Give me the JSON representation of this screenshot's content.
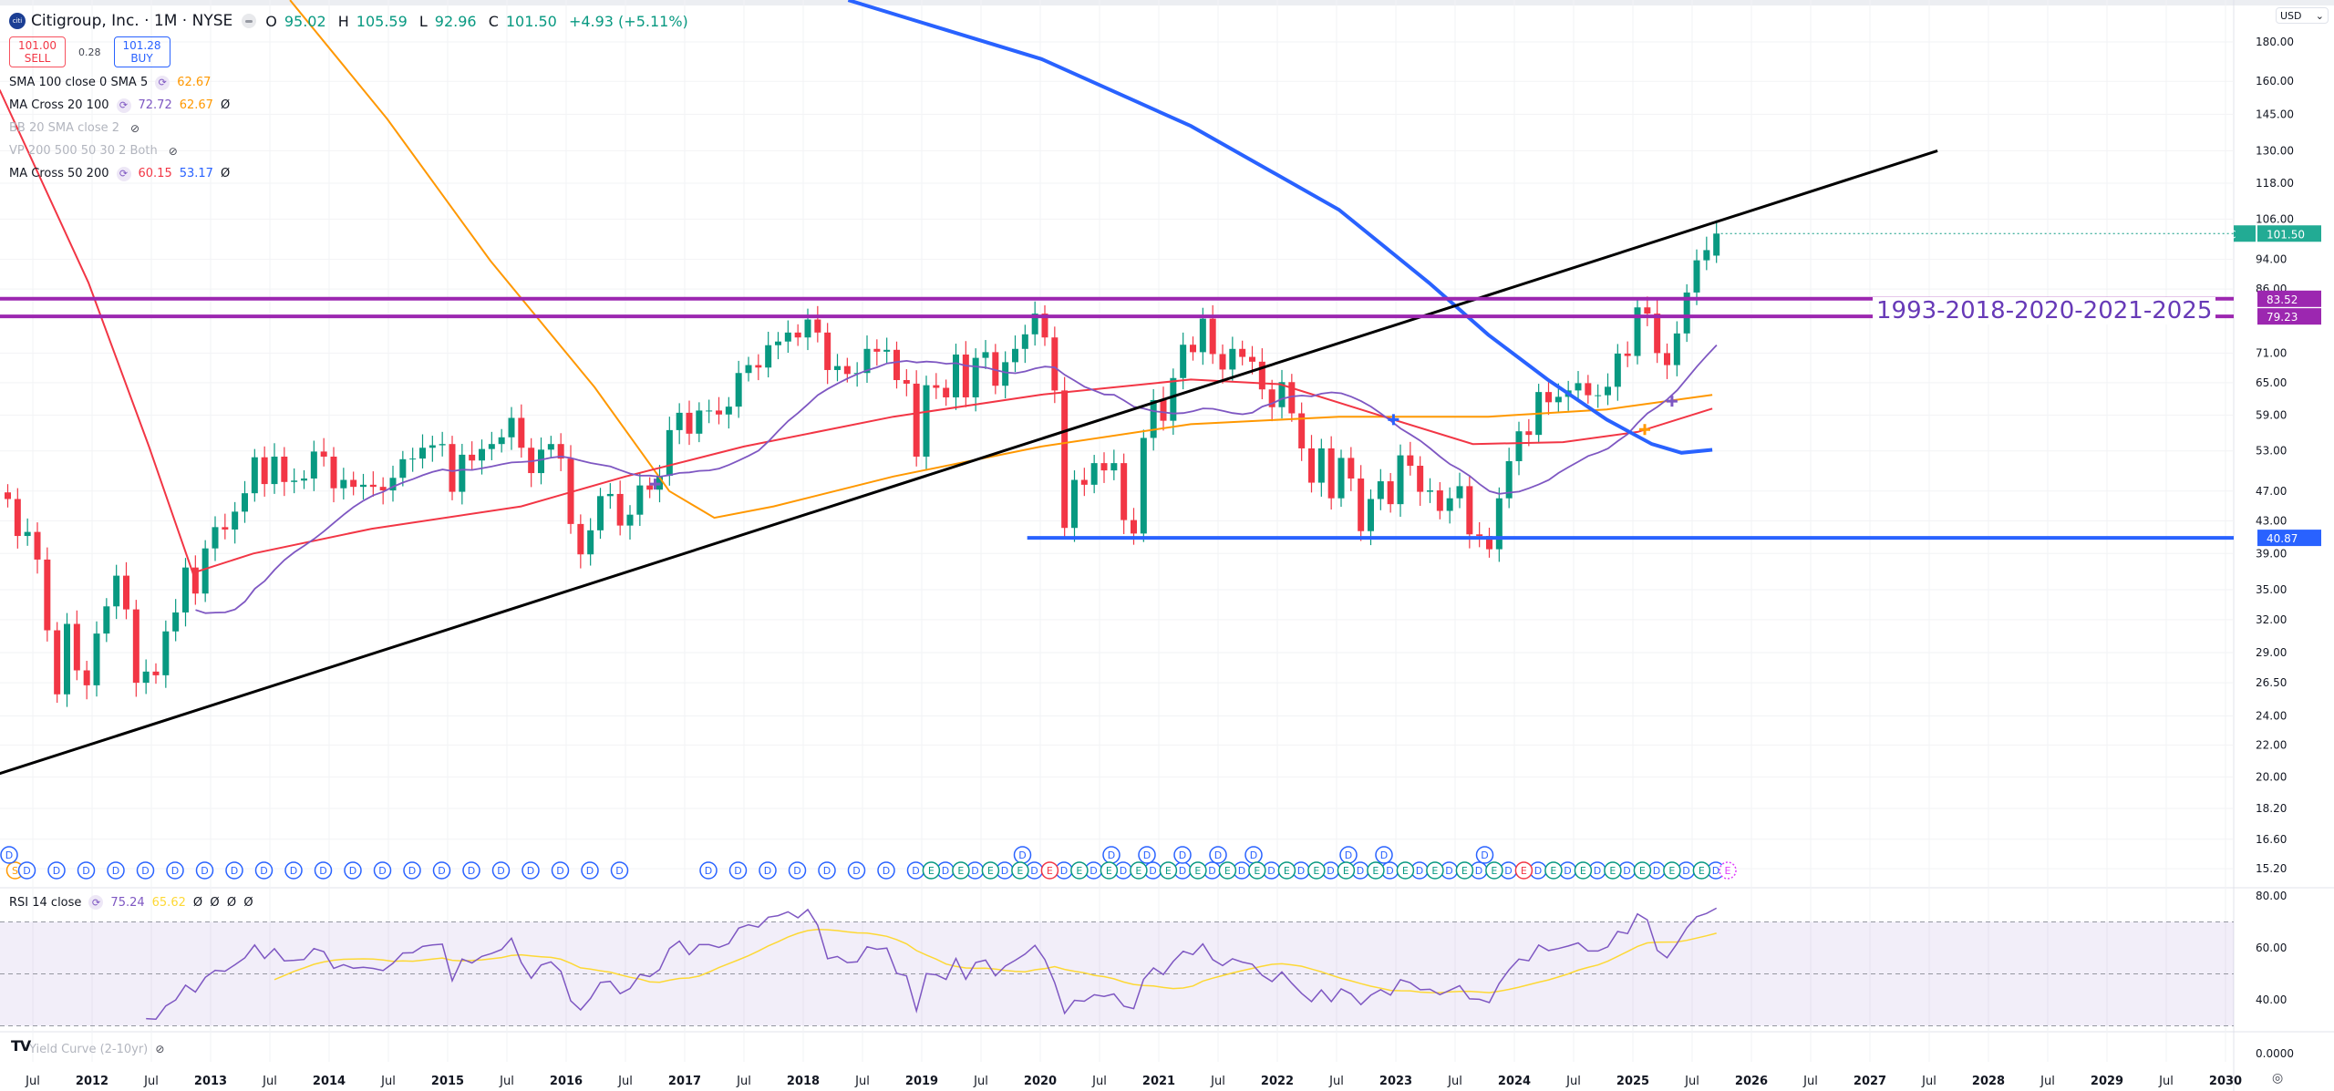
{
  "header": {
    "symbol_title": "Citigroup, Inc. · 1M · NYSE",
    "logo_text": "citi",
    "ohlc": {
      "o_label": "O",
      "o": "95.02",
      "h_label": "H",
      "h": "105.59",
      "l_label": "L",
      "l": "92.96",
      "c_label": "C",
      "c": "101.50",
      "change": "+4.93 (+5.11%)"
    }
  },
  "trade": {
    "sell_price": "101.00",
    "sell_label": "SELL",
    "spread": "0.28",
    "buy_price": "101.28",
    "buy_label": "BUY"
  },
  "indicators": [
    {
      "name": "SMA 100 close 0 SMA 5",
      "values": [
        "62.67"
      ],
      "colors": [
        "#ff9800"
      ],
      "visible": true,
      "null_mark": ""
    },
    {
      "name": "MA Cross 20 100",
      "values": [
        "72.72",
        "62.67"
      ],
      "colors": [
        "#7e57c2",
        "#ff9800"
      ],
      "visible": true,
      "null_mark": "Ø"
    },
    {
      "name": "BB 20 SMA close 2",
      "values": [],
      "colors": [],
      "visible": false,
      "null_mark": ""
    },
    {
      "name": "VP 200 500 50 30 2 Both",
      "values": [],
      "colors": [],
      "visible": false,
      "null_mark": ""
    },
    {
      "name": "MA Cross 50 200",
      "values": [
        "60.15",
        "53.17"
      ],
      "colors": [
        "#f23645",
        "#2962ff"
      ],
      "visible": true,
      "null_mark": "Ø"
    }
  ],
  "rsi_legend": {
    "name": "RSI 14 close",
    "value": "75.24",
    "ma_value": "65.62",
    "nulls": "Ø  Ø  Ø  Ø"
  },
  "yield_legend": {
    "name": "Yield Curve (2-10yr)"
  },
  "tv_logo": "TV",
  "currency": "USD",
  "annotation": "1993-2018-2020-2021-2025",
  "price_tags": [
    {
      "value": "101.50",
      "prefix": "C",
      "color": "#22ab94"
    },
    {
      "value": "83.52",
      "prefix": "",
      "color": "#9c27b0"
    },
    {
      "value": "79.23",
      "prefix": "",
      "color": "#9c27b0"
    },
    {
      "value": "40.87",
      "prefix": "",
      "color": "#2962ff"
    }
  ],
  "colors": {
    "up": "#089981",
    "down": "#f23645",
    "ma20": "#7e57c2",
    "ma50": "#f23645",
    "ma100": "#ff9800",
    "ma200": "#2962ff",
    "trend": "#000000",
    "level": "#9c27b0",
    "support": "#2962ff",
    "rsi": "#7e57c2",
    "rsi_ma": "#fdd835"
  },
  "chart_data": {
    "type": "candlestick",
    "title": "Citigroup, Inc. · 1M · NYSE",
    "scale": "log",
    "start": [
      2011,
      4
    ],
    "closes": [
      45.9,
      41.1,
      41.6,
      38.3,
      31.0,
      25.6,
      31.6,
      27.5,
      26.3,
      30.7,
      33.3,
      36.5,
      33.0,
      26.5,
      27.4,
      27.1,
      30.9,
      32.7,
      37.4,
      34.6,
      39.6,
      42.2,
      41.9,
      44.2,
      46.7,
      52.0,
      48.0,
      52.1,
      48.3,
      48.5,
      48.8,
      52.9,
      52.1,
      47.4,
      48.6,
      47.6,
      47.9,
      47.6,
      47.1,
      48.9,
      51.7,
      51.8,
      53.5,
      53.9,
      54.1,
      46.9,
      52.4,
      51.5,
      53.3,
      54.1,
      55.2,
      58.5,
      53.5,
      49.6,
      53.2,
      54.1,
      51.8,
      42.6,
      38.9,
      41.8,
      46.3,
      46.6,
      42.4,
      43.8,
      47.8,
      47.2,
      49.2,
      56.4,
      59.4,
      55.8,
      59.8,
      59.8,
      59.1,
      60.5,
      66.9,
      68.5,
      68.0,
      72.7,
      73.5,
      75.5,
      74.4,
      78.5,
      75.5,
      67.5,
      68.3,
      66.7,
      66.9,
      71.9,
      71.3,
      71.7,
      65.5,
      64.8,
      52.1,
      64.5,
      64.0,
      62.2,
      70.7,
      62.2,
      70.0,
      71.2,
      64.4,
      69.1,
      71.9,
      75.1,
      79.9,
      74.4,
      63.5,
      42.1,
      48.6,
      47.9,
      51.1,
      50.0,
      51.1,
      43.1,
      41.4,
      55.1,
      61.7,
      58.0,
      65.9,
      72.8,
      71.2,
      78.7,
      70.8,
      67.6,
      71.9,
      70.2,
      69.2,
      63.7,
      60.4,
      65.1,
      59.3,
      53.4,
      48.2,
      53.4,
      46.0,
      51.9,
      48.8,
      41.7,
      45.9,
      48.4,
      45.2,
      52.3,
      50.7,
      46.9,
      47.1,
      44.3,
      46.0,
      47.7,
      41.3,
      41.1,
      39.5,
      46.0,
      51.4,
      56.2,
      55.6,
      63.2,
      61.3,
      62.3,
      63.5,
      64.9,
      62.6,
      62.6,
      64.2,
      70.9,
      70.4,
      81.4,
      79.9,
      71.0,
      68.5,
      75.3,
      85.1,
      93.7,
      96.6,
      101.5
    ],
    "last_bar": {
      "open": 95.02,
      "high": 105.59,
      "low": 92.96,
      "close": 101.5
    },
    "ma_series": {
      "ma50": [
        [
          2011.22,
          156
        ],
        [
          2011.97,
          87.6
        ],
        [
          2012.48,
          53.7
        ],
        [
          2012.85,
          36.8
        ],
        [
          2013.36,
          39.0
        ],
        [
          2014.36,
          42.0
        ],
        [
          2015.62,
          44.9
        ],
        [
          2016.5,
          49.1
        ],
        [
          2017.5,
          53.7
        ],
        [
          2018.76,
          58.7
        ],
        [
          2020.01,
          62.7
        ],
        [
          2021.27,
          65.6
        ],
        [
          2022.02,
          64.7
        ],
        [
          2022.9,
          58.7
        ],
        [
          2023.65,
          54.1
        ],
        [
          2024.41,
          54.4
        ],
        [
          2025.04,
          56.1
        ],
        [
          2025.67,
          60.15
        ]
      ],
      "ma100": [
        [
          2013.67,
          204
        ],
        [
          2014.49,
          143
        ],
        [
          2015.36,
          93.6
        ],
        [
          2016.24,
          64.1
        ],
        [
          2016.87,
          47
        ],
        [
          2017.25,
          43.4
        ],
        [
          2017.75,
          44.9
        ],
        [
          2018.76,
          49.1
        ],
        [
          2020.01,
          53.7
        ],
        [
          2021.27,
          57.4
        ],
        [
          2022.52,
          58.7
        ],
        [
          2023.78,
          58.7
        ],
        [
          2024.78,
          60
        ],
        [
          2025.67,
          62.67
        ]
      ],
      "ma200": [
        [
          2018.38,
          204
        ],
        [
          2020.01,
          171
        ],
        [
          2021.27,
          140
        ],
        [
          2022.52,
          109
        ],
        [
          2023.28,
          87.6
        ],
        [
          2023.78,
          75
        ],
        [
          2024.28,
          65.6
        ],
        [
          2024.78,
          58.2
        ],
        [
          2025.16,
          54.1
        ],
        [
          2025.41,
          52.7
        ],
        [
          2025.67,
          53.17
        ]
      ]
    },
    "trendline": [
      [
        2011.22,
        20.2
      ],
      [
        2027.57,
        130
      ]
    ],
    "levels": [
      {
        "price": 83.52,
        "from": 2011.0
      },
      {
        "price": 79.23,
        "from": 2011.0
      },
      {
        "price": 40.87,
        "from": 2019.89
      }
    ],
    "y_ticks": [
      "180.00",
      "160.00",
      "145.00",
      "130.00",
      "118.00",
      "106.00",
      "94.00",
      "86.00",
      "71.00",
      "65.00",
      "59.00",
      "53.00",
      "47.00",
      "43.00",
      "39.00",
      "35.00",
      "32.00",
      "29.00",
      "26.50",
      "24.00",
      "22.00",
      "20.00",
      "18.20",
      "16.60",
      "15.20"
    ],
    "x_ticks": [
      [
        2011.5,
        "Jul"
      ],
      [
        2012,
        "2012"
      ],
      [
        2012.5,
        "Jul"
      ],
      [
        2013,
        "2013"
      ],
      [
        2013.5,
        "Jul"
      ],
      [
        2014,
        "2014"
      ],
      [
        2014.5,
        "Jul"
      ],
      [
        2015,
        "2015"
      ],
      [
        2015.5,
        "Jul"
      ],
      [
        2016,
        "2016"
      ],
      [
        2016.5,
        "Jul"
      ],
      [
        2017,
        "2017"
      ],
      [
        2017.5,
        "Jul"
      ],
      [
        2018,
        "2018"
      ],
      [
        2018.5,
        "Jul"
      ],
      [
        2019,
        "2019"
      ],
      [
        2019.5,
        "Jul"
      ],
      [
        2020,
        "2020"
      ],
      [
        2020.5,
        "Jul"
      ],
      [
        2021,
        "2021"
      ],
      [
        2021.5,
        "Jul"
      ],
      [
        2022,
        "2022"
      ],
      [
        2022.5,
        "Jul"
      ],
      [
        2023,
        "2023"
      ],
      [
        2023.5,
        "Jul"
      ],
      [
        2024,
        "2024"
      ],
      [
        2024.5,
        "Jul"
      ],
      [
        2025,
        "2025"
      ],
      [
        2025.5,
        "Jul"
      ],
      [
        2026,
        "2026"
      ],
      [
        2026.5,
        "Jul"
      ],
      [
        2027,
        "2027"
      ],
      [
        2027.5,
        "Jul"
      ],
      [
        2028,
        "2028"
      ],
      [
        2028.5,
        "Jul"
      ],
      [
        2029,
        "2029"
      ],
      [
        2029.5,
        "Jul"
      ],
      [
        2030,
        "2030"
      ]
    ],
    "rsi": {
      "period": 14,
      "ma_period": 14,
      "ticks": [
        "80.00",
        "60.00",
        "40.00"
      ],
      "bands": [
        70,
        50,
        30
      ],
      "bottom_tick": "0.0000"
    },
    "events": {
      "split": {
        "t": 2011.35,
        "label": "S"
      },
      "dividend_label": "D",
      "earnings_label": "E",
      "dividends_from": 2011.45,
      "earnings_from": 2019.0,
      "upper_dividends": [
        2011.3,
        2019.85,
        2020.6,
        2020.9,
        2021.2,
        2021.5,
        2021.8,
        2022.6,
        2022.9,
        2023.75
      ],
      "negative_earnings": [
        2020.15,
        2024.0
      ],
      "upcoming_earnings": 2025.8
    }
  }
}
